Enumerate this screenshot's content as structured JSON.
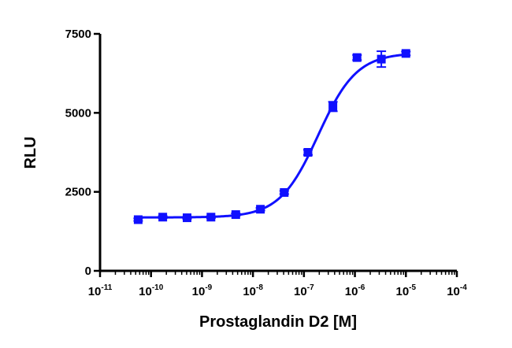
{
  "chart_data": {
    "type": "scatter",
    "xlabel": "Prostaglandin D2 [M]",
    "ylabel": "RLU",
    "xscale": "log",
    "xlim": [
      1e-11,
      0.0001
    ],
    "ylim": [
      0,
      7500
    ],
    "grid": false,
    "colors": {
      "series": "#1010ff",
      "axis": "#000000"
    },
    "x_ticks": [
      {
        "value": 1e-11,
        "base": "10",
        "exp": "-11"
      },
      {
        "value": 1e-10,
        "base": "10",
        "exp": "-10"
      },
      {
        "value": 1e-09,
        "base": "10",
        "exp": "-9"
      },
      {
        "value": 1e-08,
        "base": "10",
        "exp": "-8"
      },
      {
        "value": 1e-07,
        "base": "10",
        "exp": "-7"
      },
      {
        "value": 1e-06,
        "base": "10",
        "exp": "-6"
      },
      {
        "value": 1e-05,
        "base": "10",
        "exp": "-5"
      },
      {
        "value": 0.0001,
        "base": "10",
        "exp": "-4"
      }
    ],
    "y_ticks": [
      {
        "value": 0,
        "label": "0"
      },
      {
        "value": 2500,
        "label": "2500"
      },
      {
        "value": 5000,
        "label": "5000"
      },
      {
        "value": 7500,
        "label": "7500"
      }
    ],
    "points": [
      {
        "x": 5.6e-11,
        "y": 1620,
        "err": 40
      },
      {
        "x": 1.7e-10,
        "y": 1700,
        "err": 30
      },
      {
        "x": 5.1e-10,
        "y": 1680,
        "err": 30
      },
      {
        "x": 1.5e-09,
        "y": 1700,
        "err": 30
      },
      {
        "x": 4.6e-09,
        "y": 1780,
        "err": 40
      },
      {
        "x": 1.4e-08,
        "y": 1950,
        "err": 40
      },
      {
        "x": 4.1e-08,
        "y": 2480,
        "err": 50
      },
      {
        "x": 1.2e-07,
        "y": 3750,
        "err": 80
      },
      {
        "x": 3.7e-07,
        "y": 5200,
        "err": 150
      },
      {
        "x": 1.1e-06,
        "y": 6750,
        "err": 80
      },
      {
        "x": 3.3e-06,
        "y": 6700,
        "err": 250
      },
      {
        "x": 1e-05,
        "y": 6880,
        "err": 60
      }
    ],
    "fit": {
      "model": "sigmoidal dose-response",
      "bottom": 1690,
      "top": 6900,
      "logEC50": -6.72,
      "hill": 1.15
    }
  }
}
